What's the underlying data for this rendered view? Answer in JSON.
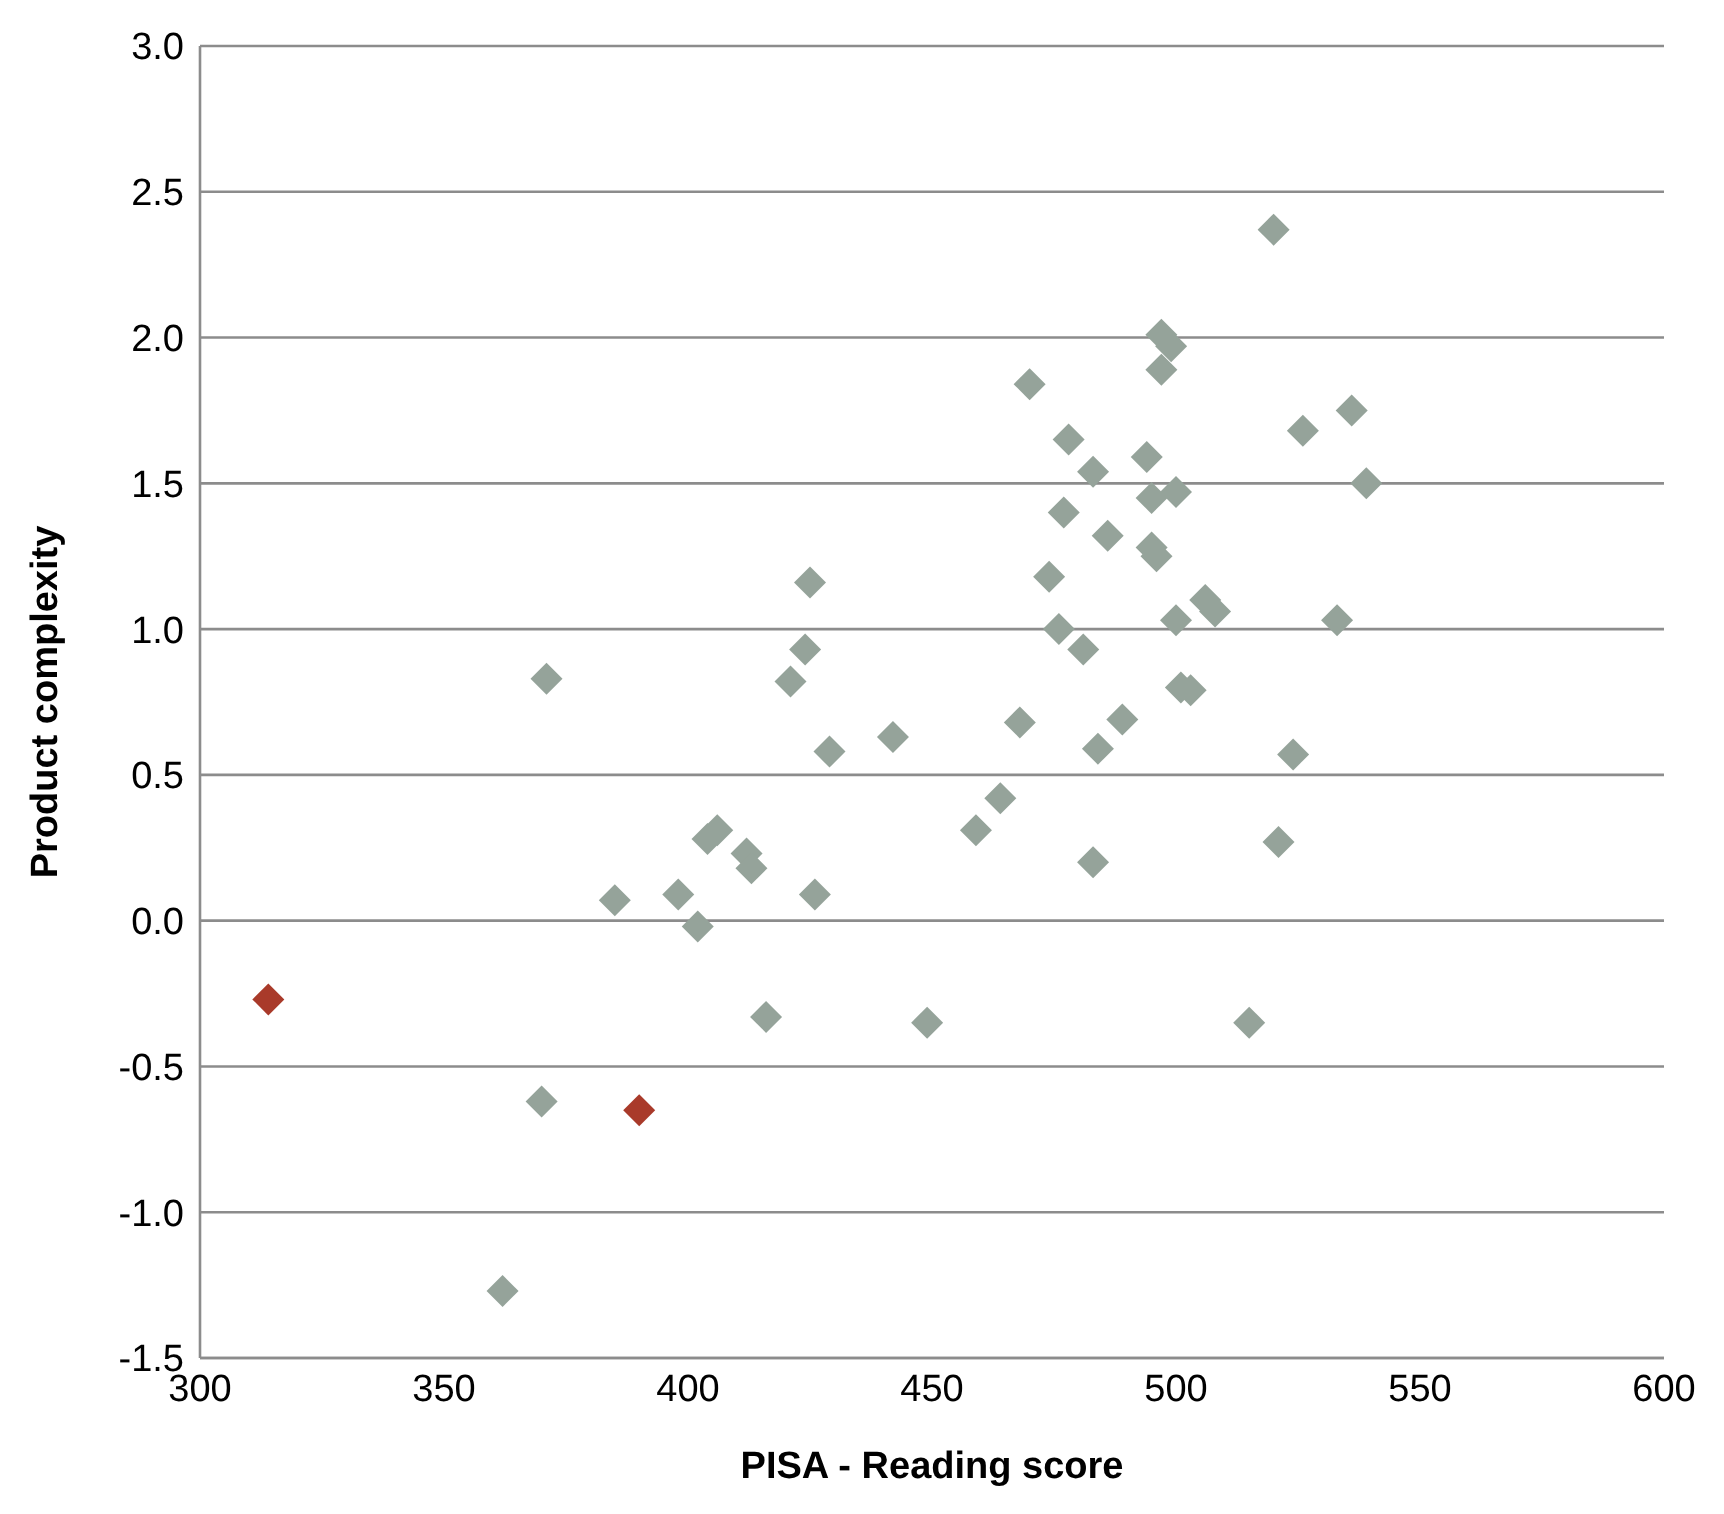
{
  "chart_data": {
    "type": "scatter",
    "xlabel": "PISA - Reading score",
    "ylabel": "Product complexity",
    "xlim": [
      300,
      600
    ],
    "xticks": [
      300,
      350,
      400,
      450,
      500,
      550,
      600
    ],
    "ylim": [
      -1.5,
      3.0
    ],
    "yticks": [
      {
        "value": -1.5,
        "label": "-1.5"
      },
      {
        "value": -1.0,
        "label": "-1.0"
      },
      {
        "value": -0.5,
        "label": "-0.5"
      },
      {
        "value": 0,
        "label": "0.0"
      },
      {
        "value": 0.5,
        "label": "0.5"
      },
      {
        "value": 1.0,
        "label": "1.0"
      },
      {
        "value": 1.5,
        "label": "1.5"
      },
      {
        "value": 2.0,
        "label": "2.0"
      },
      {
        "value": 2.5,
        "label": "2.5"
      },
      {
        "value": 3.0,
        "label": "3.0"
      }
    ],
    "grid": "y",
    "marker": "diamond",
    "series": [
      {
        "color": "#95a39a",
        "x": [
          362,
          370,
          371,
          385,
          398,
          402,
          404,
          406,
          412,
          413,
          416,
          421,
          424,
          425,
          426,
          429,
          442,
          449,
          459,
          464,
          468,
          470,
          474,
          476,
          477,
          478,
          481,
          483,
          483,
          484,
          486,
          489,
          494,
          495,
          495,
          496,
          497,
          497,
          499,
          500,
          500,
          501,
          503,
          506,
          508,
          515,
          520,
          521,
          524,
          526,
          533,
          536,
          539
        ],
        "values": [
          -1.27,
          -0.62,
          0.83,
          0.07,
          0.09,
          -0.02,
          0.28,
          0.31,
          0.23,
          0.18,
          -0.33,
          0.82,
          0.93,
          1.16,
          0.09,
          0.58,
          0.63,
          -0.35,
          0.31,
          0.42,
          0.68,
          1.84,
          1.18,
          1.0,
          1.4,
          1.65,
          0.93,
          1.54,
          0.2,
          0.59,
          1.32,
          0.69,
          1.59,
          1.45,
          1.28,
          1.25,
          2.01,
          1.89,
          1.97,
          1.47,
          1.03,
          0.8,
          0.79,
          1.1,
          1.06,
          -0.35,
          2.37,
          0.27,
          0.57,
          1.68,
          1.03,
          1.75,
          1.5
        ]
      },
      {
        "color": "#a93a2a",
        "x": [
          314,
          390
        ],
        "values": [
          -0.27,
          -0.65
        ]
      }
    ]
  }
}
